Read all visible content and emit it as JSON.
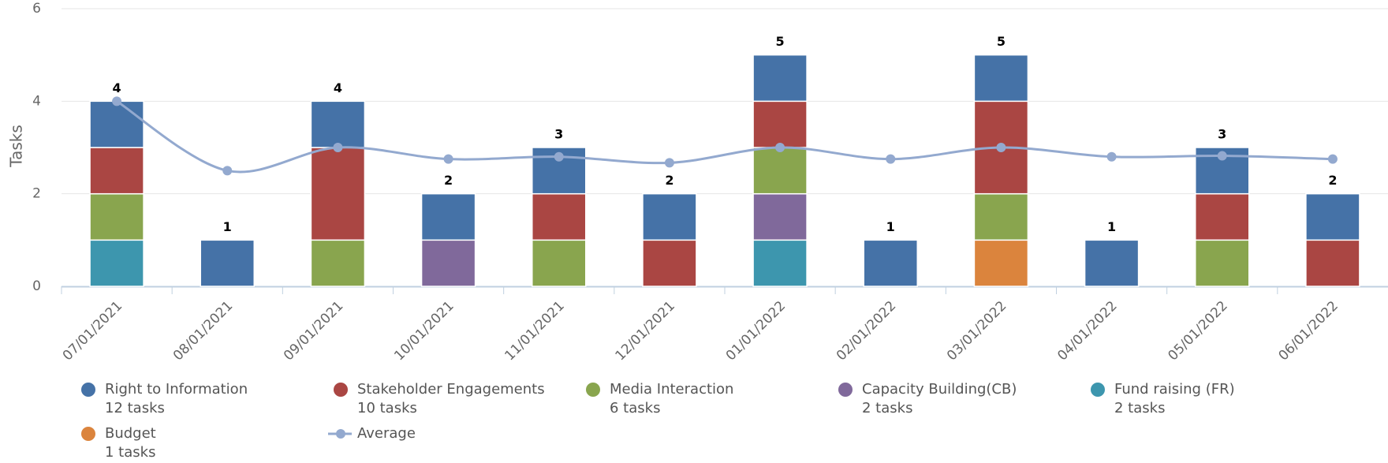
{
  "chart_data": {
    "type": "bar",
    "stacked": true,
    "y_label": "Tasks",
    "categories": [
      "07/01/2021",
      "08/01/2021",
      "09/01/2021",
      "10/01/2021",
      "11/01/2021",
      "12/01/2021",
      "01/01/2022",
      "02/01/2022",
      "03/01/2022",
      "04/01/2022",
      "05/01/2022",
      "06/01/2022"
    ],
    "ylim": [
      0,
      6
    ],
    "yticks": [
      0,
      2,
      4,
      6
    ],
    "grid": true,
    "series": [
      {
        "name": "Right to Information",
        "subtitle": "12 tasks",
        "color": "#4572a7",
        "values": [
          1,
          1,
          1,
          1,
          1,
          1,
          1,
          1,
          1,
          1,
          1,
          1
        ]
      },
      {
        "name": "Stakeholder Engagements",
        "subtitle": "10 tasks",
        "color": "#aa4643",
        "values": [
          1,
          0,
          2,
          0,
          1,
          1,
          1,
          0,
          2,
          0,
          1,
          1
        ]
      },
      {
        "name": "Media Interaction",
        "subtitle": "6 tasks",
        "color": "#89a54e",
        "values": [
          1,
          0,
          1,
          0,
          1,
          0,
          1,
          0,
          1,
          0,
          1,
          0
        ]
      },
      {
        "name": "Capacity Building(CB)",
        "subtitle": "2 tasks",
        "color": "#80699b",
        "values": [
          0,
          0,
          0,
          1,
          0,
          0,
          1,
          0,
          0,
          0,
          0,
          0
        ]
      },
      {
        "name": "Fund raising (FR)",
        "subtitle": "2 tasks",
        "color": "#3d96ae",
        "values": [
          1,
          0,
          0,
          0,
          0,
          0,
          1,
          0,
          0,
          0,
          0,
          0
        ]
      },
      {
        "name": "Budget",
        "subtitle": "1 tasks",
        "color": "#db843d",
        "values": [
          0,
          0,
          0,
          0,
          0,
          0,
          0,
          0,
          1,
          0,
          0,
          0
        ]
      }
    ],
    "totals": [
      4,
      1,
      4,
      2,
      3,
      2,
      5,
      1,
      5,
      1,
      3,
      2
    ],
    "line_series": {
      "name": "Average",
      "color": "#93a9cf",
      "values": [
        4,
        2.5,
        3,
        2.75,
        2.8,
        2.67,
        3,
        2.75,
        3,
        2.8,
        2.82,
        2.75
      ]
    }
  }
}
